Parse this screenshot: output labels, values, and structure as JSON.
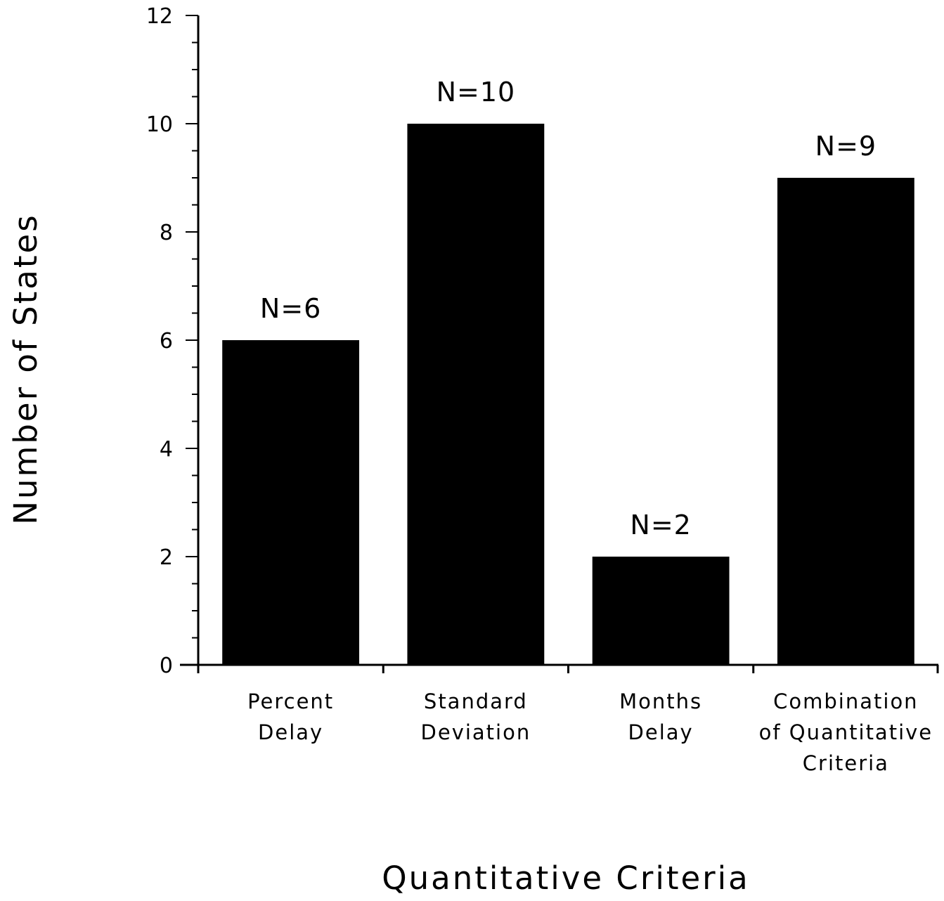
{
  "chart_data": {
    "type": "bar",
    "categories": [
      [
        "Percent",
        "Delay"
      ],
      [
        "Standard",
        "Deviation"
      ],
      [
        "Months",
        "Delay"
      ],
      [
        "Combination",
        "of Quantitative",
        "Criteria"
      ]
    ],
    "values": [
      6,
      10,
      2,
      9
    ],
    "data_labels": [
      "N=6",
      "N=10",
      "N=2",
      "N=9"
    ],
    "title": "",
    "xlabel": "Quantitative Criteria",
    "ylabel": "Number of States",
    "ylim": [
      0,
      12
    ],
    "yticks": [
      0,
      2,
      4,
      6,
      8,
      10,
      12
    ],
    "grid": false,
    "bar_color": "#000000"
  }
}
